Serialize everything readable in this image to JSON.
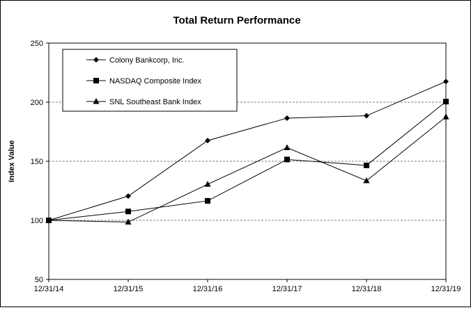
{
  "chart_data": {
    "type": "line",
    "title": "Total Return Performance",
    "ylabel": "Index Value",
    "xlabel": "",
    "categories": [
      "12/31/14",
      "12/31/15",
      "12/31/16",
      "12/31/17",
      "12/31/18",
      "12/31/19"
    ],
    "ylim": [
      50,
      250
    ],
    "yticks": [
      50,
      100,
      150,
      200,
      250
    ],
    "grid": "horizontal-dashed",
    "legend": "top-left",
    "series": [
      {
        "name": "Colony Bankcorp, Inc.",
        "marker": "diamond",
        "values": [
          100,
          120.5,
          167.5,
          186.5,
          188.5,
          217.5
        ]
      },
      {
        "name": "NASDAQ Composite Index",
        "marker": "square",
        "values": [
          100,
          107.5,
          116.5,
          151.5,
          146.5,
          200.5
        ]
      },
      {
        "name": "SNL Southeast Bank Index",
        "marker": "triangle",
        "values": [
          100,
          98.5,
          130.5,
          161.5,
          133.5,
          187.5
        ]
      }
    ]
  }
}
